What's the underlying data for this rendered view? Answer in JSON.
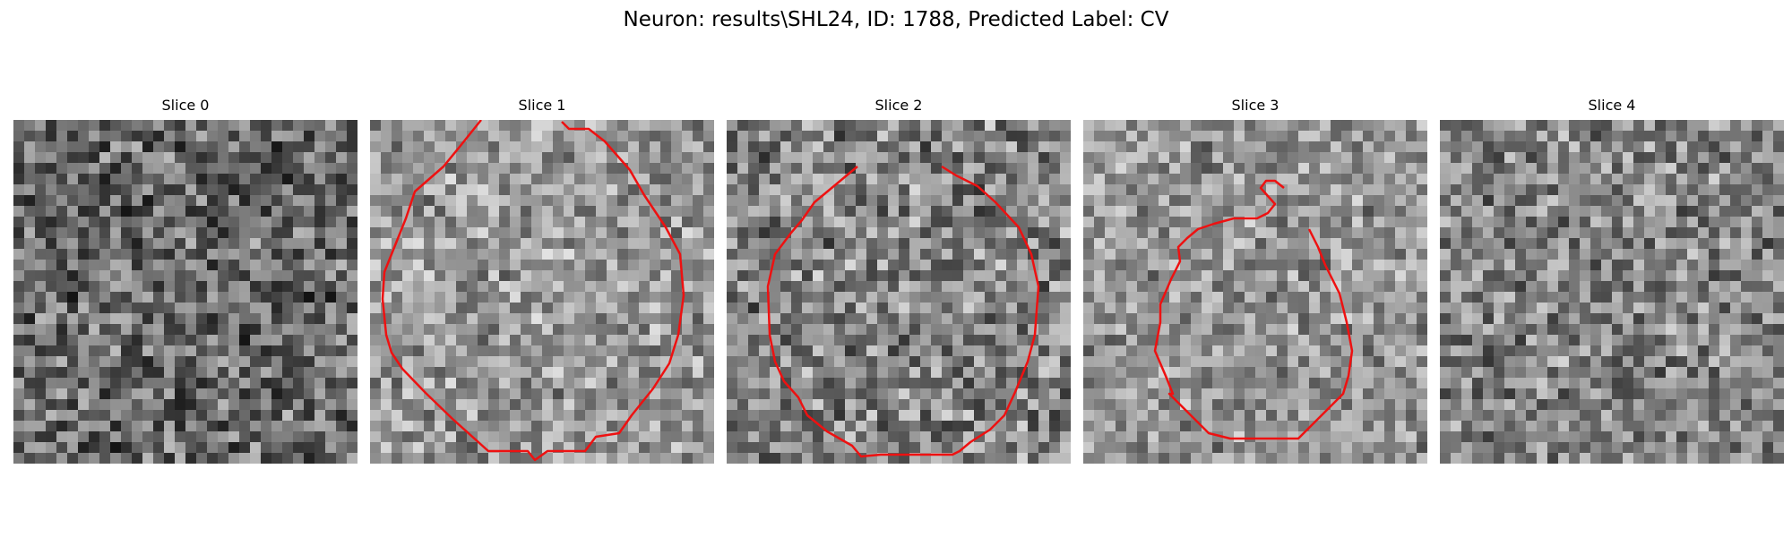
{
  "figure": {
    "title": "Neuron: results\\SHL24, ID: 1788, Predicted Label: CV"
  },
  "panels": [
    {
      "title": "Slice 0",
      "seed": 11,
      "has_contour": false,
      "base": 0.42,
      "contrast": 0.55
    },
    {
      "title": "Slice 1",
      "seed": 23,
      "has_contour": true,
      "base": 0.6,
      "contrast": 0.45
    },
    {
      "title": "Slice 2",
      "seed": 37,
      "has_contour": true,
      "base": 0.52,
      "contrast": 0.55
    },
    {
      "title": "Slice 3",
      "seed": 41,
      "has_contour": true,
      "base": 0.58,
      "contrast": 0.45
    },
    {
      "title": "Slice 4",
      "seed": 53,
      "has_contour": false,
      "base": 0.52,
      "contrast": 0.5
    }
  ],
  "colors": {
    "contour": "#ee1111",
    "background": "#ffffff"
  },
  "image": {
    "colormap": "gray",
    "grid_size": 32
  }
}
